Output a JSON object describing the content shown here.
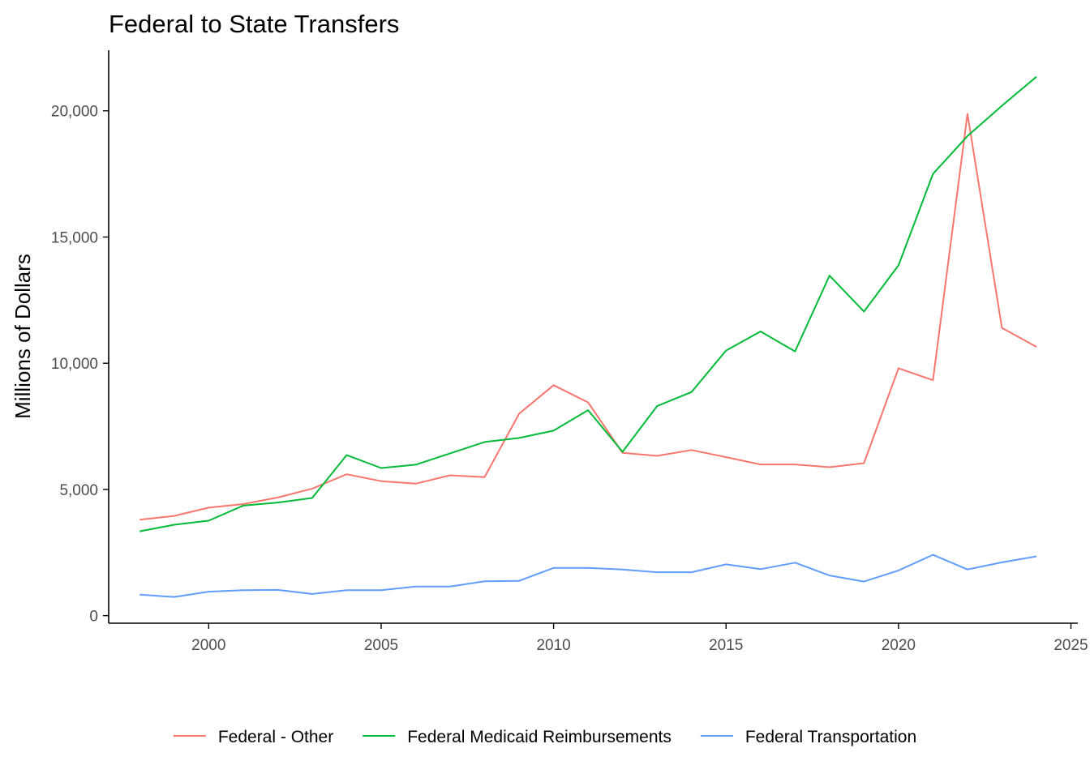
{
  "chart_data": {
    "type": "line",
    "title": "Federal to State Transfers",
    "xlabel": "",
    "ylabel": "Millions of Dollars",
    "xlim": [
      1997.1,
      2025.2
    ],
    "ylim": [
      -300,
      22400
    ],
    "x_ticks": [
      2000,
      2005,
      2010,
      2015,
      2020,
      2025
    ],
    "y_ticks": [
      0,
      5000,
      10000,
      15000,
      20000
    ],
    "x_tick_labels": [
      "2000",
      "2005",
      "2010",
      "2015",
      "2020",
      "2025"
    ],
    "y_tick_labels": [
      "0",
      "5,000",
      "10,000",
      "15,000",
      "20,000"
    ],
    "grid": false,
    "legend_position": "bottom",
    "x": [
      1998,
      1999,
      2000,
      2001,
      2002,
      2003,
      2004,
      2005,
      2006,
      2007,
      2008,
      2009,
      2010,
      2011,
      2012,
      2013,
      2014,
      2015,
      2016,
      2017,
      2018,
      2019,
      2020,
      2021,
      2022,
      2023,
      2024
    ],
    "series": [
      {
        "name": "Federal - Other",
        "color": "#F8766D",
        "values": [
          3800,
          3950,
          4280,
          4420,
          4680,
          5030,
          5600,
          5330,
          5230,
          5560,
          5490,
          8000,
          9130,
          8450,
          6450,
          6330,
          6560,
          6280,
          5990,
          5990,
          5880,
          6040,
          9800,
          9330,
          19880,
          11400,
          10650
        ]
      },
      {
        "name": "Federal Medicaid Reimbursements",
        "color": "#00BA38",
        "values": [
          3340,
          3600,
          3760,
          4360,
          4480,
          4660,
          6360,
          5850,
          5980,
          6430,
          6880,
          7040,
          7330,
          8140,
          6490,
          8300,
          8860,
          10500,
          11260,
          10470,
          13470,
          12050,
          13880,
          17500,
          19000,
          20200,
          21350
        ]
      },
      {
        "name": "Federal Transportation",
        "color": "#619CFF",
        "values": [
          830,
          740,
          950,
          1010,
          1020,
          860,
          1010,
          1010,
          1150,
          1150,
          1360,
          1380,
          1890,
          1890,
          1830,
          1720,
          1720,
          2030,
          1840,
          2100,
          1590,
          1350,
          1790,
          2410,
          1830,
          2110,
          2350
        ]
      }
    ]
  }
}
